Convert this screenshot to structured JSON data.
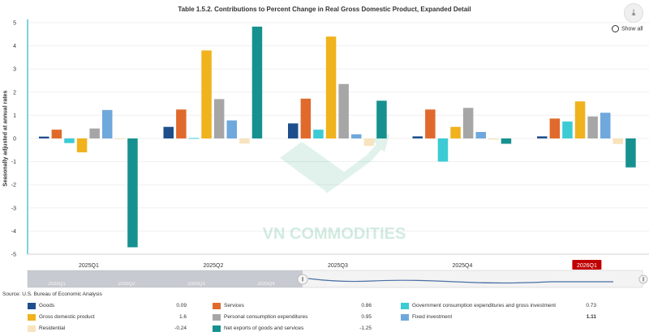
{
  "title": "Table 1.5.2. Contributions to Percent Change in Real Gross Domestic Product, Expanded Detail",
  "show_all_label": "Show all",
  "source": "Source: U.S. Bureau of Economic Analysis",
  "watermark": "VN COMMODITIES",
  "colors": {
    "axis": "#5ec8d8",
    "grid": "#f0f0f0",
    "highlight_label_bg": "#c00000",
    "navigator_line": "#4a6fa5"
  },
  "navigator_labels": [
    "2025Q1",
    "2025Q2",
    "2025Q3",
    "2025Q4",
    "2026Q1"
  ],
  "chart_data": {
    "type": "bar",
    "title": "Table 1.5.2. Contributions to Percent Change in Real Gross Domestic Product, Expanded Detail",
    "ylabel": "Seasonally adjusted at annual rates",
    "xlabel": "",
    "ylim": [
      -5,
      5
    ],
    "yticks": [
      5,
      4,
      3,
      2,
      1,
      0,
      -1,
      -2,
      -3,
      -4,
      -5
    ],
    "grid": true,
    "legend_position": "bottom",
    "highlighted_category": "2026Q1",
    "categories": [
      "2025Q1",
      "2025Q2",
      "2025Q3",
      "2025Q4",
      "2026Q1"
    ],
    "series": [
      {
        "name": "Goods",
        "color": "#1f4e8c",
        "values": [
          0.08,
          0.5,
          0.65,
          0.09,
          0.09
        ]
      },
      {
        "name": "Services",
        "color": "#e06a2c",
        "values": [
          0.38,
          1.25,
          1.72,
          1.25,
          0.86
        ]
      },
      {
        "name": "Government consumption expenditures and gross investment",
        "color": "#3ccbd4",
        "values": [
          -0.2,
          0.02,
          0.38,
          -1.0,
          0.73
        ]
      },
      {
        "name": "Gross domestic product",
        "color": "#f0b21d",
        "values": [
          -0.6,
          3.8,
          4.4,
          0.5,
          1.6
        ]
      },
      {
        "name": "Personal consumption expenditures",
        "color": "#a6a6a6",
        "values": [
          0.43,
          1.7,
          2.35,
          1.32,
          0.95
        ]
      },
      {
        "name": "Fixed investment",
        "color": "#6fa8dc",
        "values": [
          1.23,
          0.78,
          0.18,
          0.28,
          1.11
        ]
      },
      {
        "name": "Residential",
        "color": "#f7e3bd",
        "values": [
          -0.03,
          -0.22,
          -0.32,
          -0.05,
          -0.24
        ]
      },
      {
        "name": "Net exports of goods and services",
        "color": "#17918f",
        "values": [
          -4.7,
          4.83,
          1.63,
          -0.23,
          -1.25
        ]
      }
    ]
  },
  "legend": [
    {
      "name": "Goods",
      "value": "0.09"
    },
    {
      "name": "Services",
      "value": "0.86"
    },
    {
      "name": "Government consumption expenditures and gross investment",
      "value": "0.73"
    },
    {
      "name": "Gross domestic product",
      "value": "1.6"
    },
    {
      "name": "Personal consumption expenditures",
      "value": "0.95"
    },
    {
      "name": "Fixed investment",
      "value": "1.11"
    },
    {
      "name": "Residential",
      "value": "-0.24"
    },
    {
      "name": "Net exports of goods and services",
      "value": "-1.25"
    }
  ]
}
